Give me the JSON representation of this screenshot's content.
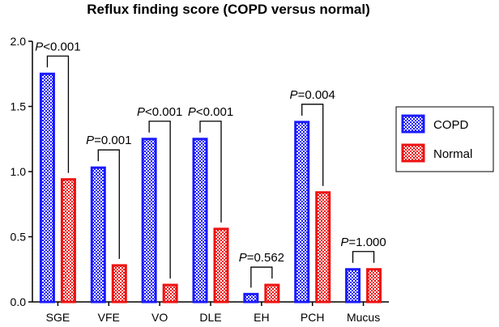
{
  "chart_data": {
    "type": "bar",
    "title": "Reflux finding score (COPD versus normal)",
    "xlabel": "",
    "ylabel": "",
    "ylim": [
      0,
      2.0
    ],
    "yticks": [
      0.0,
      0.5,
      1.0,
      1.5,
      2.0
    ],
    "ytick_labels": [
      "0.0",
      "0.5",
      "1.0",
      "1.5",
      "2.0"
    ],
    "categories": [
      "SGE",
      "VFE",
      "VO",
      "DLE",
      "EH",
      "PCH",
      "Mucus"
    ],
    "series": [
      {
        "name": "COPD",
        "values": [
          1.75,
          1.03,
          1.25,
          1.25,
          0.06,
          1.38,
          0.25
        ],
        "color": "#1a1aff"
      },
      {
        "name": "Normal",
        "values": [
          0.94,
          0.28,
          0.13,
          0.56,
          0.13,
          0.84,
          0.25
        ],
        "color": "#ee1111"
      }
    ],
    "annotations": [
      {
        "prefix": "P",
        "text": "<0.001",
        "category": "SGE"
      },
      {
        "prefix": "P",
        "text": "=0.001",
        "category": "VFE"
      },
      {
        "prefix": "P",
        "text": "<0.001",
        "category": "VO"
      },
      {
        "prefix": "P",
        "text": "<0.001",
        "category": "DLE"
      },
      {
        "prefix": "P",
        "text": "=0.562",
        "category": "EH"
      },
      {
        "prefix": "P",
        "text": "=0.004",
        "category": "PCH"
      },
      {
        "prefix": "P",
        "text": "=1.000",
        "category": "Mucus"
      }
    ],
    "legend_position": "right"
  }
}
